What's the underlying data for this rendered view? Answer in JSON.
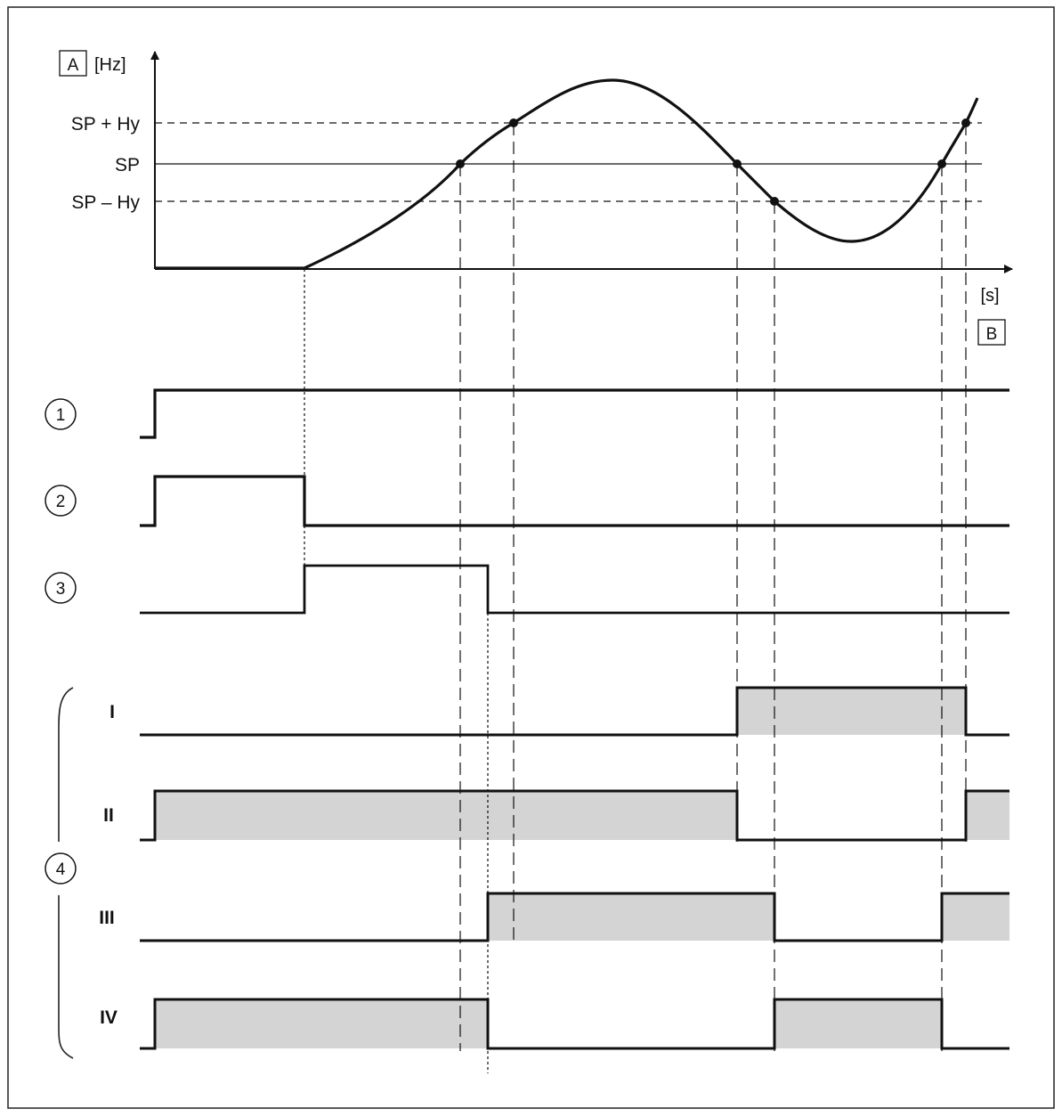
{
  "y_axis": {
    "box_label": "A",
    "unit": "[Hz]"
  },
  "x_axis": {
    "unit": "[s]",
    "box_label": "B"
  },
  "thresholds": {
    "upper": "SP + Hy",
    "setpoint": "SP",
    "lower": "SP – Hy"
  },
  "signals": [
    {
      "marker": "1"
    },
    {
      "marker": "2"
    },
    {
      "marker": "3"
    }
  ],
  "output_group": {
    "marker": "4"
  },
  "outputs": [
    {
      "label": "I"
    },
    {
      "label": "II"
    },
    {
      "label": "III"
    },
    {
      "label": "IV"
    }
  ],
  "colors": {
    "line": "#111111",
    "fill": "#d4d4d4",
    "frame": "#222222"
  }
}
